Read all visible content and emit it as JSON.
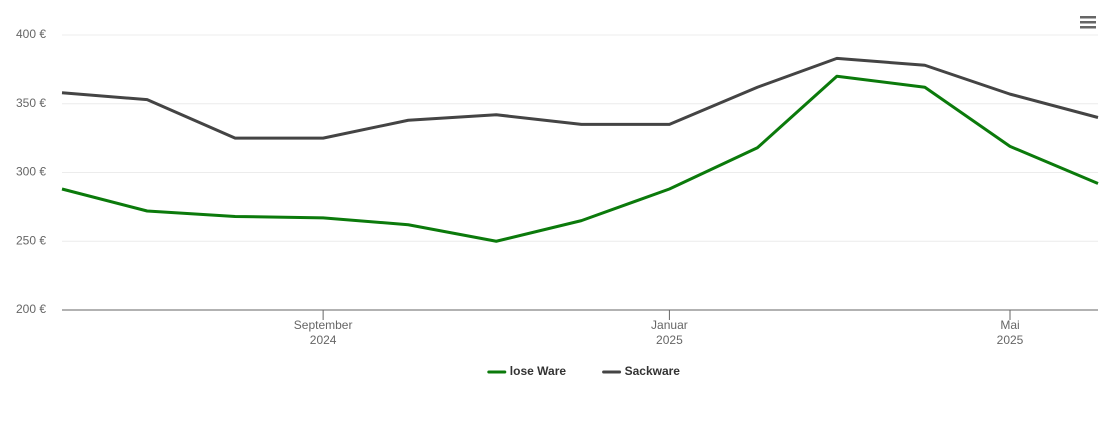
{
  "chart_data": {
    "type": "line",
    "x": [
      "2024-06",
      "2024-07",
      "2024-08",
      "2024-09",
      "2024-10",
      "2024-11",
      "2024-12",
      "2025-01",
      "2025-02",
      "2025-03",
      "2025-04",
      "2025-05",
      "2025-06"
    ],
    "series": [
      {
        "name": "lose Ware",
        "color": "#0b7a0b",
        "values": [
          288,
          272,
          268,
          267,
          262,
          250,
          265,
          288,
          318,
          370,
          362,
          319,
          292
        ]
      },
      {
        "name": "Sackware",
        "color": "#444444",
        "values": [
          358,
          353,
          325,
          325,
          338,
          342,
          335,
          335,
          362,
          383,
          378,
          357,
          340
        ]
      }
    ],
    "xlim": [
      "2024-06",
      "2025-06"
    ],
    "xticks": [
      {
        "value": "2024-09",
        "label": "September 2024"
      },
      {
        "value": "2025-01",
        "label": "Januar 2025"
      },
      {
        "value": "2025-05",
        "label": "Mai 2025"
      }
    ],
    "ylim": [
      200,
      400
    ],
    "yticks": [
      {
        "value": 200,
        "label": "200 €"
      },
      {
        "value": 250,
        "label": "250 €"
      },
      {
        "value": 300,
        "label": "300 €"
      },
      {
        "value": 350,
        "label": "350 €"
      },
      {
        "value": 400,
        "label": "400 €"
      }
    ],
    "grid": true,
    "legend": "bottom"
  }
}
